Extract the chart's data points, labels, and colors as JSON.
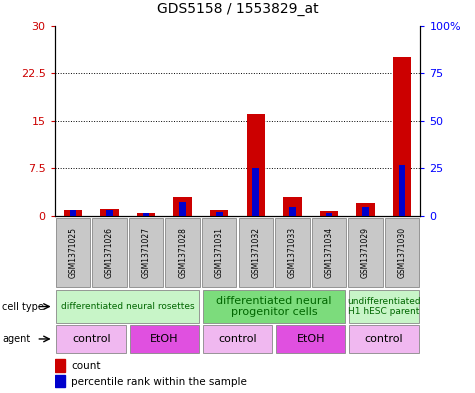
{
  "title": "GDS5158 / 1553829_at",
  "samples": [
    "GSM1371025",
    "GSM1371026",
    "GSM1371027",
    "GSM1371028",
    "GSM1371031",
    "GSM1371032",
    "GSM1371033",
    "GSM1371034",
    "GSM1371029",
    "GSM1371030"
  ],
  "red_values": [
    1.0,
    1.1,
    0.5,
    3.0,
    1.0,
    16.0,
    3.0,
    0.8,
    2.0,
    25.0
  ],
  "blue_percentile": [
    3,
    3,
    1.7,
    7.3,
    2.3,
    25,
    5,
    1.7,
    4.7,
    26.7
  ],
  "ylim_left": [
    0,
    30
  ],
  "ylim_right": [
    0,
    100
  ],
  "yticks_left": [
    0,
    7.5,
    15,
    22.5,
    30
  ],
  "yticks_right": [
    0,
    25,
    50,
    75,
    100
  ],
  "ytick_labels_left": [
    "0",
    "7.5",
    "15",
    "22.5",
    "30"
  ],
  "ytick_labels_right": [
    "0",
    "25",
    "50",
    "75",
    "100%"
  ],
  "cell_type_groups": [
    {
      "label": "differentiated neural rosettes",
      "start": 0,
      "end": 4,
      "color": "#c8f5c8",
      "fontsize": 6.5
    },
    {
      "label": "differentiated neural\nprogenitor cells",
      "start": 4,
      "end": 8,
      "color": "#7cdc7c",
      "fontsize": 8
    },
    {
      "label": "undifferentiated\nH1 hESC parent",
      "start": 8,
      "end": 10,
      "color": "#c8f5c8",
      "fontsize": 6.5
    }
  ],
  "agent_groups": [
    {
      "label": "control",
      "start": 0,
      "end": 2,
      "color": "#f0b8f0"
    },
    {
      "label": "EtOH",
      "start": 2,
      "end": 4,
      "color": "#e050e0"
    },
    {
      "label": "control",
      "start": 4,
      "end": 6,
      "color": "#f0b8f0"
    },
    {
      "label": "EtOH",
      "start": 6,
      "end": 8,
      "color": "#e050e0"
    },
    {
      "label": "control",
      "start": 8,
      "end": 10,
      "color": "#f0b8f0"
    }
  ],
  "red_color": "#cc0000",
  "blue_color": "#0000cc",
  "bg_color": "#ffffff",
  "sample_bg_color": "#c8c8c8",
  "cell_type_label_color": "#006600"
}
